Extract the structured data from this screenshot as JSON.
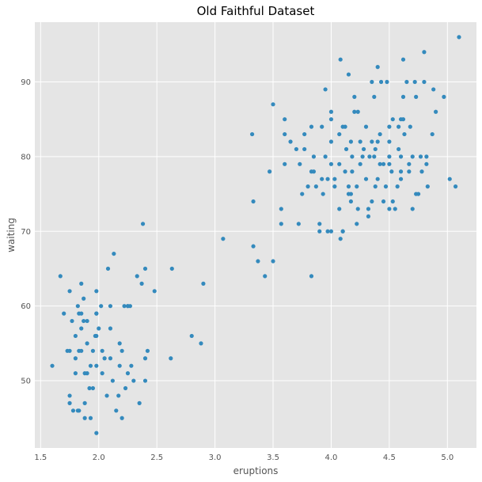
{
  "chart_data": {
    "type": "scatter",
    "title": "Old Faithful Dataset",
    "xlabel": "eruptions",
    "ylabel": "waiting",
    "xlim": [
      1.45,
      5.25
    ],
    "ylim": [
      41,
      98
    ],
    "x_ticks": [
      "1.5",
      "2.0",
      "2.5",
      "3.0",
      "3.5",
      "4.0",
      "4.5",
      "5.0"
    ],
    "y_ticks": [
      "50",
      "60",
      "70",
      "80",
      "90"
    ],
    "grid": true,
    "colors": {
      "background": "#E5E5E5",
      "grid": "#FFFFFF",
      "point": "#348ABD"
    },
    "points": [
      [
        1.6,
        52
      ],
      [
        1.67,
        64
      ],
      [
        1.7,
        59
      ],
      [
        1.73,
        54
      ],
      [
        1.75,
        54
      ],
      [
        1.75,
        47
      ],
      [
        1.75,
        48
      ],
      [
        1.77,
        58
      ],
      [
        1.75,
        62
      ],
      [
        1.78,
        46
      ],
      [
        1.8,
        53
      ],
      [
        1.8,
        56
      ],
      [
        1.8,
        51
      ],
      [
        1.82,
        60
      ],
      [
        1.83,
        59
      ],
      [
        1.82,
        46
      ],
      [
        1.85,
        63
      ],
      [
        1.85,
        57
      ],
      [
        1.85,
        54
      ],
      [
        1.85,
        59
      ],
      [
        1.83,
        54
      ],
      [
        1.83,
        46
      ],
      [
        1.87,
        61
      ],
      [
        1.87,
        58
      ],
      [
        1.88,
        51
      ],
      [
        1.88,
        47
      ],
      [
        1.88,
        45
      ],
      [
        1.9,
        58
      ],
      [
        1.9,
        55
      ],
      [
        1.9,
        51
      ],
      [
        1.92,
        49
      ],
      [
        1.93,
        45
      ],
      [
        1.93,
        52
      ],
      [
        1.95,
        54
      ],
      [
        1.95,
        49
      ],
      [
        1.97,
        56
      ],
      [
        1.98,
        52
      ],
      [
        1.98,
        56
      ],
      [
        1.98,
        59
      ],
      [
        1.98,
        62
      ],
      [
        1.98,
        43
      ],
      [
        1.98,
        59
      ],
      [
        2.0,
        57
      ],
      [
        2.02,
        60
      ],
      [
        2.03,
        54
      ],
      [
        2.03,
        51
      ],
      [
        2.05,
        53
      ],
      [
        2.07,
        48
      ],
      [
        2.08,
        65
      ],
      [
        2.1,
        60
      ],
      [
        2.1,
        57
      ],
      [
        2.1,
        53
      ],
      [
        2.12,
        50
      ],
      [
        2.13,
        67
      ],
      [
        2.15,
        46
      ],
      [
        2.17,
        48
      ],
      [
        2.18,
        55
      ],
      [
        2.18,
        52
      ],
      [
        2.2,
        45
      ],
      [
        2.2,
        54
      ],
      [
        2.22,
        60
      ],
      [
        2.23,
        49
      ],
      [
        2.25,
        60
      ],
      [
        2.25,
        60
      ],
      [
        2.25,
        51
      ],
      [
        2.27,
        60
      ],
      [
        2.28,
        52
      ],
      [
        2.3,
        50
      ],
      [
        2.33,
        64
      ],
      [
        2.35,
        47
      ],
      [
        2.37,
        63
      ],
      [
        2.38,
        71
      ],
      [
        2.4,
        65
      ],
      [
        2.4,
        53
      ],
      [
        2.4,
        50
      ],
      [
        2.42,
        54
      ],
      [
        2.48,
        62
      ],
      [
        2.62,
        53
      ],
      [
        2.63,
        65
      ],
      [
        2.8,
        56
      ],
      [
        2.88,
        55
      ],
      [
        2.9,
        63
      ],
      [
        3.07,
        69
      ],
      [
        3.32,
        83
      ],
      [
        3.33,
        74
      ],
      [
        3.33,
        68
      ],
      [
        3.37,
        66
      ],
      [
        3.43,
        64
      ],
      [
        3.47,
        78
      ],
      [
        3.5,
        66
      ],
      [
        3.5,
        87
      ],
      [
        3.57,
        71
      ],
      [
        3.57,
        73
      ],
      [
        3.6,
        83
      ],
      [
        3.6,
        85
      ],
      [
        3.6,
        79
      ],
      [
        3.65,
        82
      ],
      [
        3.7,
        81
      ],
      [
        3.72,
        71
      ],
      [
        3.73,
        79
      ],
      [
        3.75,
        75
      ],
      [
        3.77,
        83
      ],
      [
        3.77,
        81
      ],
      [
        3.8,
        76
      ],
      [
        3.83,
        78
      ],
      [
        3.83,
        64
      ],
      [
        3.83,
        84
      ],
      [
        3.85,
        80
      ],
      [
        3.85,
        78
      ],
      [
        3.87,
        76
      ],
      [
        3.9,
        70
      ],
      [
        3.9,
        71
      ],
      [
        3.92,
        84
      ],
      [
        3.92,
        77
      ],
      [
        3.93,
        75
      ],
      [
        3.95,
        89
      ],
      [
        3.95,
        80
      ],
      [
        3.97,
        77
      ],
      [
        3.97,
        70
      ],
      [
        4.0,
        70
      ],
      [
        4.0,
        79
      ],
      [
        4.0,
        82
      ],
      [
        4.0,
        85
      ],
      [
        4.0,
        86
      ],
      [
        4.03,
        77
      ],
      [
        4.03,
        76
      ],
      [
        4.07,
        73
      ],
      [
        4.07,
        83
      ],
      [
        4.07,
        79
      ],
      [
        4.08,
        69
      ],
      [
        4.08,
        93
      ],
      [
        4.1,
        84
      ],
      [
        4.1,
        70
      ],
      [
        4.1,
        70
      ],
      [
        4.12,
        84
      ],
      [
        4.12,
        78
      ],
      [
        4.13,
        81
      ],
      [
        4.15,
        76
      ],
      [
        4.15,
        91
      ],
      [
        4.15,
        75
      ],
      [
        4.17,
        82
      ],
      [
        4.17,
        74
      ],
      [
        4.17,
        75
      ],
      [
        4.18,
        78
      ],
      [
        4.18,
        80
      ],
      [
        4.2,
        88
      ],
      [
        4.2,
        86
      ],
      [
        4.22,
        76
      ],
      [
        4.22,
        71
      ],
      [
        4.23,
        86
      ],
      [
        4.23,
        73
      ],
      [
        4.25,
        79
      ],
      [
        4.25,
        82
      ],
      [
        4.27,
        80
      ],
      [
        4.28,
        81
      ],
      [
        4.3,
        77
      ],
      [
        4.3,
        84
      ],
      [
        4.32,
        72
      ],
      [
        4.32,
        73
      ],
      [
        4.33,
        80
      ],
      [
        4.35,
        74
      ],
      [
        4.35,
        82
      ],
      [
        4.35,
        90
      ],
      [
        4.37,
        80
      ],
      [
        4.37,
        88
      ],
      [
        4.38,
        76
      ],
      [
        4.38,
        81
      ],
      [
        4.4,
        82
      ],
      [
        4.4,
        77
      ],
      [
        4.4,
        92
      ],
      [
        4.42,
        79
      ],
      [
        4.42,
        83
      ],
      [
        4.43,
        90
      ],
      [
        4.45,
        79
      ],
      [
        4.45,
        74
      ],
      [
        4.47,
        76
      ],
      [
        4.48,
        90
      ],
      [
        4.5,
        80
      ],
      [
        4.5,
        73
      ],
      [
        4.5,
        79
      ],
      [
        4.5,
        84
      ],
      [
        4.5,
        82
      ],
      [
        4.52,
        78
      ],
      [
        4.53,
        85
      ],
      [
        4.53,
        74
      ],
      [
        4.55,
        73
      ],
      [
        4.57,
        76
      ],
      [
        4.58,
        81
      ],
      [
        4.58,
        84
      ],
      [
        4.6,
        85
      ],
      [
        4.6,
        80
      ],
      [
        4.6,
        78
      ],
      [
        4.6,
        77
      ],
      [
        4.62,
        93
      ],
      [
        4.62,
        88
      ],
      [
        4.62,
        85
      ],
      [
        4.63,
        83
      ],
      [
        4.65,
        90
      ],
      [
        4.67,
        79
      ],
      [
        4.67,
        78
      ],
      [
        4.68,
        84
      ],
      [
        4.7,
        80
      ],
      [
        4.7,
        73
      ],
      [
        4.72,
        90
      ],
      [
        4.73,
        88
      ],
      [
        4.73,
        75
      ],
      [
        4.75,
        75
      ],
      [
        4.77,
        80
      ],
      [
        4.78,
        78
      ],
      [
        4.8,
        90
      ],
      [
        4.8,
        94
      ],
      [
        4.82,
        80
      ],
      [
        4.82,
        79
      ],
      [
        4.83,
        76
      ],
      [
        4.87,
        83
      ],
      [
        4.88,
        89
      ],
      [
        4.9,
        86
      ],
      [
        4.97,
        88
      ],
      [
        5.02,
        77
      ],
      [
        5.07,
        76
      ],
      [
        5.1,
        96
      ]
    ]
  }
}
